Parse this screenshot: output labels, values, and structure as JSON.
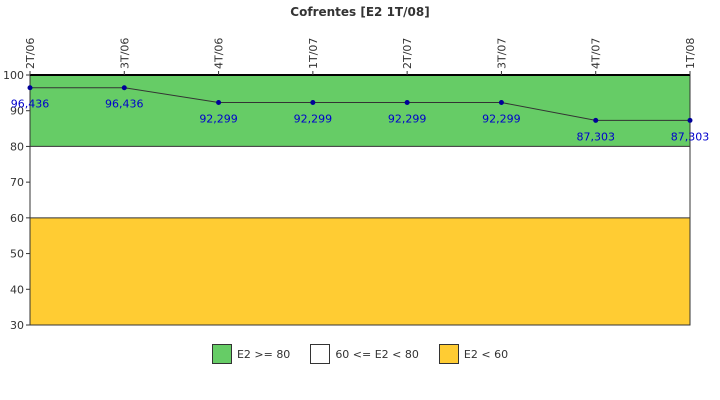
{
  "chart_data": {
    "type": "line",
    "title": "Cofrentes [E2 1T/08]",
    "categories": [
      "2T/06",
      "3T/06",
      "4T/06",
      "1T/07",
      "2T/07",
      "3T/07",
      "4T/07",
      "1T/08"
    ],
    "values": [
      96.436,
      96.436,
      92.299,
      92.299,
      92.299,
      92.299,
      87.303,
      87.303
    ],
    "value_labels": [
      "96,436",
      "96,436",
      "92,299",
      "92,299",
      "92,299",
      "92,299",
      "87,303",
      "87,303"
    ],
    "ylim": [
      30,
      100
    ],
    "yticks": [
      30,
      40,
      50,
      60,
      70,
      80,
      90,
      100
    ],
    "bands": [
      {
        "from": 80,
        "to": 100,
        "color": "#66cc66",
        "label": "E2 >= 80"
      },
      {
        "from": 60,
        "to": 80,
        "color": "#ffffff",
        "label": "60 <= E2 < 80"
      },
      {
        "from": 30,
        "to": 60,
        "color": "#ffcc33",
        "label": "E2 < 60"
      }
    ],
    "line_color": "#333333",
    "marker_color": "#000099",
    "label_color": "#0000cc"
  }
}
